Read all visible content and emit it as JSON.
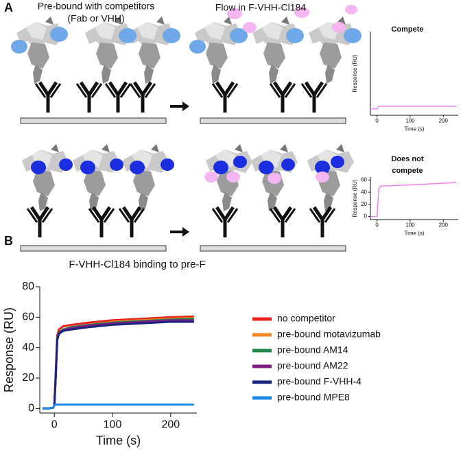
{
  "figure": {
    "panel_labels": [
      "A",
      "B"
    ],
    "captions": [
      [
        "Pre-bound with competitors",
        "(Fab or VHH)"
      ],
      "Flow in F-VHH-Cl184"
    ]
  },
  "chart_data": [
    {
      "type": "line",
      "title": "Compete",
      "ylabel": "Response (RU)",
      "xlabel": "Time (s)",
      "x": [
        -20,
        0,
        5,
        100,
        240
      ],
      "series": [
        {
          "color": "#ee82ee",
          "values": [
            0,
            0,
            2,
            2,
            2
          ]
        }
      ],
      "xlim": [
        -20,
        245
      ],
      "ylim": [
        -5,
        60
      ],
      "xticks": [
        0,
        100,
        200
      ],
      "yticks": []
    },
    {
      "type": "line",
      "title": [
        "Does not",
        "compete"
      ],
      "ylabel": "Response (RU)",
      "xlabel": "Time (s)",
      "x": [
        -20,
        0,
        5,
        10,
        100,
        240
      ],
      "series": [
        {
          "color": "#ee82ee",
          "values": [
            0,
            0,
            45,
            50,
            52,
            56
          ]
        }
      ],
      "xlim": [
        -20,
        245
      ],
      "ylim": [
        -5,
        65
      ],
      "xticks": [
        0,
        100,
        200
      ],
      "yticks": [
        0,
        20,
        40,
        60
      ]
    },
    {
      "type": "line",
      "title": "F-VHH-Cl184 binding to pre-F",
      "ylabel": "Response (RU)",
      "xlabel": "Time (s)",
      "x": [
        -20,
        -10,
        -2,
        0,
        2,
        5,
        8,
        15,
        30,
        60,
        100,
        150,
        200,
        240
      ],
      "series": [
        {
          "name": "no competitor",
          "color": "#e8211d",
          "values": [
            0,
            0,
            0.5,
            2,
            20,
            48,
            52,
            54,
            55,
            56.5,
            58,
            59,
            60,
            60.5
          ]
        },
        {
          "name": "pre-bound motavizumab",
          "color": "#f7861e",
          "values": [
            0,
            0,
            0.5,
            2,
            18,
            46,
            50,
            52,
            53.5,
            55,
            57,
            58,
            59,
            59.5
          ]
        },
        {
          "name": "pre-bound AM14",
          "color": "#1e8a45",
          "values": [
            0,
            0,
            0.5,
            2,
            18,
            46,
            50,
            52,
            53.5,
            55,
            56.5,
            57.5,
            58.5,
            59
          ]
        },
        {
          "name": "pre-bound AM22",
          "color": "#7e1e82",
          "values": [
            0,
            0,
            0.5,
            2,
            17,
            45,
            49.5,
            51.5,
            53,
            54.5,
            56,
            57,
            58,
            58
          ]
        },
        {
          "name": "pre-bound F-VHH-4",
          "color": "#1a237e",
          "values": [
            0,
            0,
            0.5,
            2,
            17,
            45,
            49,
            51,
            52,
            53.5,
            55,
            56,
            57,
            57
          ]
        },
        {
          "name": "pre-bound MPE8",
          "color": "#1e88e5",
          "values": [
            0,
            0,
            0.5,
            2,
            2.5,
            2.5,
            2.5,
            2.5,
            2.5,
            2.5,
            2.5,
            2.5,
            2.5,
            2.5
          ]
        }
      ],
      "xlim": [
        -25,
        245
      ],
      "ylim": [
        -3,
        80
      ],
      "xticks": [
        0,
        100,
        200
      ],
      "yticks": [
        0,
        20,
        40,
        60,
        80
      ],
      "legend": "right"
    }
  ]
}
